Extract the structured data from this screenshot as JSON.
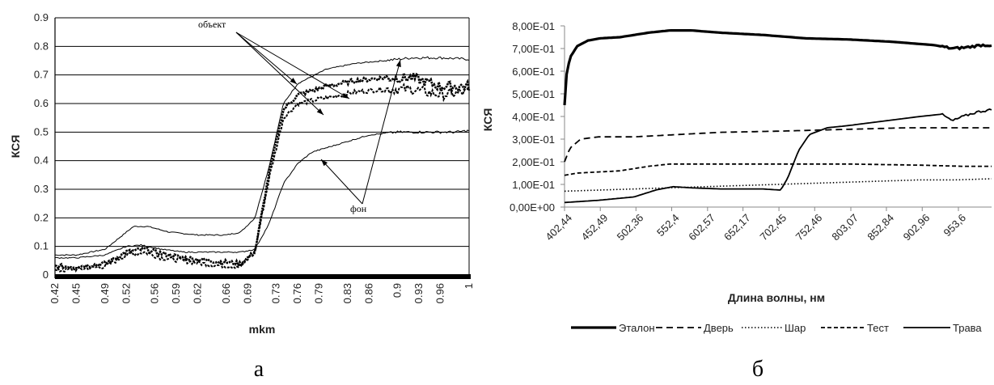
{
  "chart_data": [
    {
      "type": "line",
      "panel_label": "а",
      "xlabel": "mkm",
      "ylabel": "КСЯ",
      "ylim": [
        0,
        0.9
      ],
      "yticks": [
        "0",
        "0.1",
        "0.2",
        "0.3",
        "0.4",
        "0.5",
        "0.6",
        "0.7",
        "0.8",
        "0.9"
      ],
      "xlim": [
        0.42,
        1.0
      ],
      "xticks": [
        "0.42",
        "0.45",
        "0.49",
        "0.52",
        "0.56",
        "0.59",
        "0.62",
        "0.66",
        "0.69",
        "0.73",
        "0.76",
        "0.79",
        "0.83",
        "0.86",
        "0.9",
        "0.93",
        "0.96",
        "1"
      ],
      "grid": "horizontal",
      "annotations": [
        "объект",
        "фон"
      ],
      "series": [
        {
          "style": "thin",
          "x": [
            0.42,
            0.45,
            0.49,
            0.51,
            0.53,
            0.55,
            0.58,
            0.62,
            0.66,
            0.68,
            0.7,
            0.72,
            0.74,
            0.76,
            0.8,
            0.84,
            0.88,
            0.92,
            0.96,
            1.0
          ],
          "y": [
            0.07,
            0.07,
            0.09,
            0.13,
            0.17,
            0.17,
            0.15,
            0.14,
            0.14,
            0.15,
            0.2,
            0.38,
            0.6,
            0.67,
            0.72,
            0.74,
            0.75,
            0.76,
            0.76,
            0.755
          ]
        },
        {
          "style": "dashed",
          "x": [
            0.42,
            0.45,
            0.49,
            0.52,
            0.545,
            0.57,
            0.6,
            0.64,
            0.68,
            0.7,
            0.72,
            0.74,
            0.76,
            0.8,
            0.84,
            0.88,
            0.92,
            0.96,
            1.0
          ],
          "y": [
            0.015,
            0.02,
            0.03,
            0.07,
            0.08,
            0.06,
            0.05,
            0.035,
            0.03,
            0.08,
            0.34,
            0.55,
            0.6,
            0.62,
            0.64,
            0.65,
            0.65,
            0.63,
            0.64
          ]
        },
        {
          "style": "bold-dotted",
          "x": [
            0.42,
            0.45,
            0.49,
            0.52,
            0.545,
            0.57,
            0.6,
            0.64,
            0.68,
            0.7,
            0.72,
            0.74,
            0.76,
            0.8,
            0.84,
            0.88,
            0.92,
            0.96,
            1.0
          ],
          "y": [
            0.03,
            0.03,
            0.04,
            0.08,
            0.09,
            0.075,
            0.06,
            0.05,
            0.04,
            0.08,
            0.36,
            0.58,
            0.63,
            0.66,
            0.68,
            0.69,
            0.69,
            0.66,
            0.66
          ]
        },
        {
          "style": "thin",
          "x": [
            0.42,
            0.45,
            0.49,
            0.52,
            0.54,
            0.57,
            0.6,
            0.64,
            0.68,
            0.7,
            0.72,
            0.74,
            0.76,
            0.78,
            0.82,
            0.86,
            0.9,
            0.94,
            0.98,
            1.0
          ],
          "y": [
            0.06,
            0.06,
            0.07,
            0.1,
            0.105,
            0.09,
            0.08,
            0.08,
            0.08,
            0.09,
            0.18,
            0.32,
            0.39,
            0.43,
            0.46,
            0.49,
            0.5,
            0.5,
            0.5,
            0.505
          ]
        }
      ]
    },
    {
      "type": "line",
      "panel_label": "б",
      "xlabel": "Длина волны, нм",
      "ylabel": "КСЯ",
      "ylim": [
        0,
        0.8
      ],
      "yticks": [
        "0,00E+00",
        "1,00E-01",
        "2,00E-01",
        "3,00E-01",
        "4,00E-01",
        "5,00E-01",
        "6,00E-01",
        "7,00E-01",
        "8,00E-01"
      ],
      "xlim": [
        402.44,
        1000
      ],
      "xticks": [
        "402,44",
        "452,49",
        "502,36",
        "552,4",
        "602,57",
        "652,17",
        "702,45",
        "752,46",
        "803,07",
        "852,84",
        "902,96",
        "953,6"
      ],
      "legend_position": "bottom",
      "series": [
        {
          "name": "Эталон",
          "style": "thick",
          "x": [
            402.44,
            405,
            410,
            420,
            435,
            452,
            480,
            520,
            550,
            580,
            620,
            680,
            740,
            800,
            860,
            920,
            945,
            965,
            985,
            1000
          ],
          "y": [
            0.45,
            0.58,
            0.66,
            0.71,
            0.735,
            0.745,
            0.75,
            0.77,
            0.78,
            0.78,
            0.77,
            0.76,
            0.745,
            0.74,
            0.73,
            0.715,
            0.7,
            0.705,
            0.715,
            0.715
          ]
        },
        {
          "name": "Дверь",
          "style": "dashed",
          "x": [
            402.44,
            410,
            425,
            450,
            500,
            560,
            620,
            700,
            760,
            820,
            880,
            940,
            1000
          ],
          "y": [
            0.2,
            0.26,
            0.3,
            0.31,
            0.31,
            0.32,
            0.33,
            0.335,
            0.34,
            0.345,
            0.35,
            0.35,
            0.35
          ]
        },
        {
          "name": "Шар",
          "style": "dotted",
          "x": [
            402.44,
            450,
            500,
            550,
            600,
            650,
            700,
            750,
            800,
            850,
            900,
            950,
            1000
          ],
          "y": [
            0.07,
            0.075,
            0.08,
            0.085,
            0.09,
            0.095,
            0.1,
            0.105,
            0.11,
            0.115,
            0.12,
            0.12,
            0.125
          ]
        },
        {
          "name": "Тест",
          "style": "dash-dot",
          "x": [
            402.44,
            420,
            450,
            480,
            520,
            550,
            600,
            700,
            800,
            900,
            960,
            1000
          ],
          "y": [
            0.14,
            0.15,
            0.155,
            0.16,
            0.18,
            0.19,
            0.19,
            0.19,
            0.19,
            0.185,
            0.18,
            0.18
          ]
        },
        {
          "name": "Трава",
          "style": "solid",
          "x": [
            402.44,
            450,
            500,
            530,
            555,
            580,
            620,
            680,
            705,
            715,
            730,
            745,
            770,
            800,
            850,
            900,
            930,
            945,
            960,
            980,
            1000
          ],
          "y": [
            0.02,
            0.03,
            0.045,
            0.075,
            0.09,
            0.085,
            0.08,
            0.08,
            0.075,
            0.13,
            0.25,
            0.32,
            0.35,
            0.36,
            0.38,
            0.4,
            0.41,
            0.38,
            0.4,
            0.42,
            0.43
          ]
        }
      ]
    }
  ]
}
